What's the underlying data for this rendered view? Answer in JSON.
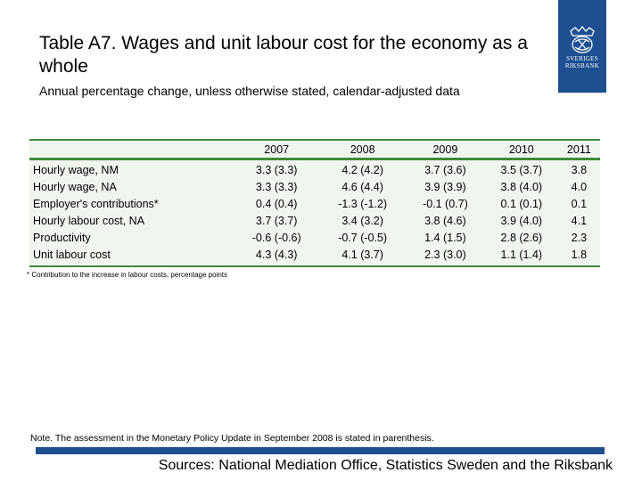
{
  "title": "Table A7. Wages and unit labour cost for the economy as a whole",
  "subtitle": "Annual percentage change, unless otherwise stated, calendar-adjusted data",
  "logo": {
    "line1": "SVERIGES",
    "line2": "RIKSBANK",
    "icon": "crown-emblem-icon",
    "color": "#1d4f91"
  },
  "table": {
    "columns": [
      "",
      "2007",
      "2008",
      "2009",
      "2010",
      "2011"
    ],
    "rows": [
      {
        "label": "Hourly wage, NM",
        "values": [
          "3.3 (3.3)",
          "4.2 (4.2)",
          "3.7 (3.6)",
          "3.5 (3.7)",
          "3.8"
        ]
      },
      {
        "label": "Hourly wage, NA",
        "values": [
          "3.3 (3.3)",
          "4.6 (4.4)",
          "3.9 (3.9)",
          "3.8 (4.0)",
          "4.0"
        ]
      },
      {
        "label": "Employer's contributions*",
        "values": [
          "0.4 (0.4)",
          "-1.3 (-1.2)",
          "-0.1 (0.7)",
          "0.1 (0.1)",
          "0.1"
        ]
      },
      {
        "label": "Hourly labour cost, NA",
        "values": [
          "3.7 (3.7)",
          "3.4 (3.2)",
          "3.8 (4.6)",
          "3.9 (4.0)",
          "4.1"
        ]
      },
      {
        "label": "Productivity",
        "values": [
          "-0.6 (-0.6)",
          "-0.7 (-0.5)",
          "1.4 (1.5)",
          "2.8 (2.6)",
          "2.3"
        ]
      },
      {
        "label": "Unit labour cost",
        "values": [
          "4.3 (4.3)",
          "4.1 (3.7)",
          "2.3 (3.0)",
          "1.1 (1.4)",
          "1.8"
        ]
      }
    ],
    "accent_color": "#3f8a3a",
    "background_color": "#f1f5ef"
  },
  "footnote": "* Contribution to the increase in labour costs, percentage points",
  "note": "Note. The assessment in the Monetary Policy Update in September 2008 is stated in parenthesis.",
  "sources": "Sources: National Mediation Office, Statistics Sweden and the Riksbank"
}
